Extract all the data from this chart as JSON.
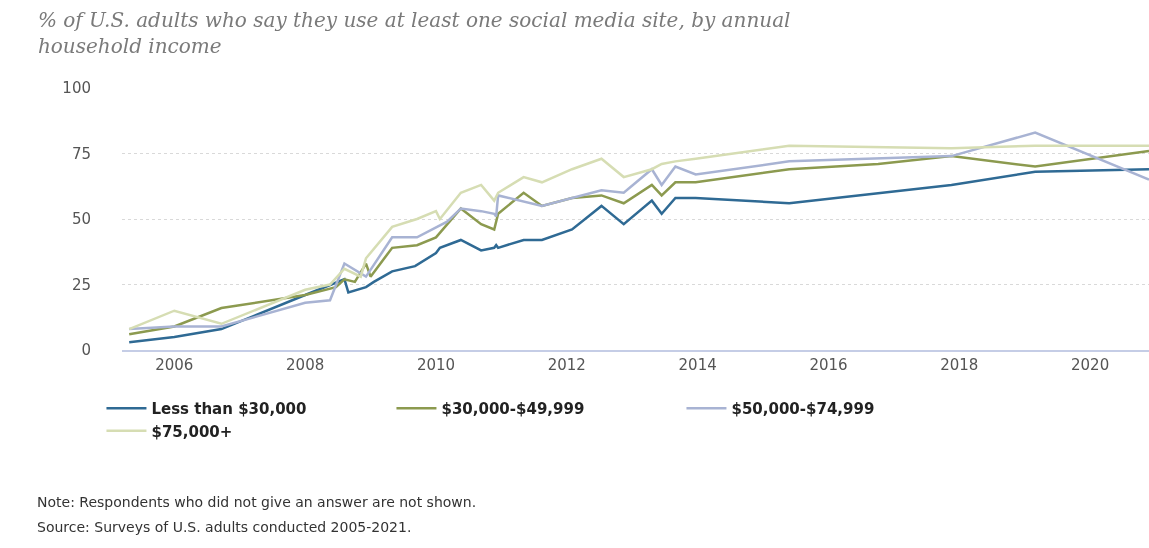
{
  "chart_data": {
    "type": "line",
    "title": "% of U.S. adults who say they use at least one social media site, by annual household income",
    "xlim": [
      2005.2,
      2020.9
    ],
    "xticks": [
      2006,
      2008,
      2010,
      2012,
      2014,
      2016,
      2018,
      2020
    ],
    "ylim": [
      0,
      100
    ],
    "yticks": [
      0,
      25,
      50,
      75,
      100
    ],
    "grid": "y",
    "legend": "bottom",
    "marker": "none",
    "line_style": "solid",
    "series": [
      {
        "name": "Less than $30,000",
        "color": "#2f6a94",
        "x": [
          2005.31,
          2006.0,
          2006.72,
          2008.0,
          2008.6,
          2008.66,
          2008.93,
          2009.05,
          2009.33,
          2009.68,
          2010.0,
          2010.06,
          2010.38,
          2010.69,
          2010.89,
          2010.92,
          2010.95,
          2011.34,
          2011.62,
          2012.08,
          2012.53,
          2012.87,
          2013.3,
          2013.45,
          2013.66,
          2013.97,
          2015.4,
          2017.88,
          2019.16,
          2020.9
        ],
        "values": [
          3,
          5,
          8,
          21,
          27,
          22,
          24,
          26,
          30,
          32,
          37,
          39,
          42,
          38,
          39,
          40,
          39,
          42,
          42,
          46,
          55,
          48,
          57,
          52,
          58,
          58,
          56,
          63,
          68,
          69
        ]
      },
      {
        "name": "$30,000-$49,999",
        "color": "#8c9a4f",
        "x": [
          2005.31,
          2006.0,
          2006.72,
          2008.0,
          2008.47,
          2008.6,
          2008.76,
          2008.93,
          2009.0,
          2009.33,
          2009.71,
          2010.0,
          2010.38,
          2010.69,
          2010.89,
          2010.95,
          2011.34,
          2011.62,
          2012.08,
          2012.53,
          2012.87,
          2013.3,
          2013.45,
          2013.66,
          2013.97,
          2015.4,
          2016.76,
          2017.88,
          2019.16,
          2020.9
        ],
        "values": [
          6,
          9,
          16,
          21,
          24,
          27,
          26,
          33,
          28,
          39,
          40,
          43,
          54,
          48,
          46,
          52,
          60,
          55,
          58,
          59,
          56,
          63,
          59,
          64,
          64,
          69,
          71,
          74,
          70,
          76
        ]
      },
      {
        "name": "$50,000-$74,999",
        "color": "#a8b3d3",
        "x": [
          2005.31,
          2006.0,
          2006.72,
          2008.0,
          2008.38,
          2008.6,
          2008.93,
          2009.33,
          2009.71,
          2010.17,
          2010.38,
          2010.69,
          2010.89,
          2010.92,
          2010.95,
          2011.62,
          2012.08,
          2012.53,
          2012.87,
          2013.3,
          2013.45,
          2013.66,
          2013.97,
          2015.4,
          2017.88,
          2019.16,
          2020.9
        ],
        "values": [
          8,
          9,
          9,
          18,
          19,
          33,
          28,
          43,
          43,
          49,
          54,
          53,
          52,
          51,
          59,
          55,
          58,
          61,
          60,
          69,
          63,
          70,
          67,
          72,
          74,
          83,
          65
        ]
      },
      {
        "name": "$75,000+",
        "color": "#d6ddb3",
        "x": [
          2005.31,
          2006.0,
          2006.72,
          2008.0,
          2008.38,
          2008.6,
          2008.85,
          2008.93,
          2009.33,
          2009.71,
          2010.0,
          2010.06,
          2010.38,
          2010.69,
          2010.89,
          2010.95,
          2011.34,
          2011.62,
          2012.08,
          2012.53,
          2012.87,
          2013.3,
          2013.45,
          2013.66,
          2013.97,
          2015.4,
          2017.88,
          2019.16,
          2020.9
        ],
        "values": [
          8,
          15,
          10,
          23,
          25,
          31,
          28,
          35,
          47,
          50,
          53,
          50,
          60,
          63,
          57,
          60,
          66,
          64,
          69,
          73,
          66,
          69,
          71,
          72,
          73,
          78,
          77,
          78,
          78
        ]
      }
    ],
    "annotations": [
      "Note: Respondents who did not give an answer are not shown.",
      "Source: Surveys of U.S. adults conducted 2005-2021."
    ]
  }
}
